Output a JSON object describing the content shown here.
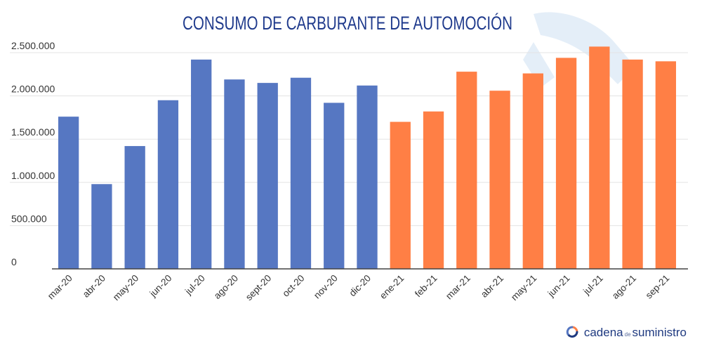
{
  "chart_data": {
    "type": "bar",
    "title": "CONSUMO DE CARBURANTE DE AUTOMOCIÓN",
    "xlabel": "",
    "ylabel": "",
    "ylim": [
      0,
      2500000
    ],
    "yticks": [
      0,
      500000,
      1000000,
      1500000,
      2000000,
      2500000
    ],
    "ytick_labels": [
      "0",
      "500.000",
      "1.000.000",
      "1.500.000",
      "2.000.000",
      "2.500.000"
    ],
    "grid": true,
    "categories": [
      "mar-20",
      "abr-20",
      "may-20",
      "jun-20",
      "jul-20",
      "ago-20",
      "sept-20",
      "oct-20",
      "nov-20",
      "dic-20",
      "ene-21",
      "feb-21",
      "mar-21",
      "abr-21",
      "may-21",
      "jun-21",
      "jul-21",
      "ago-21",
      "sep-21"
    ],
    "values": [
      1760000,
      980000,
      1420000,
      1950000,
      2420000,
      2190000,
      2150000,
      2210000,
      1920000,
      2120000,
      1700000,
      1820000,
      2280000,
      2060000,
      2260000,
      2440000,
      2570000,
      2420000,
      2400000
    ],
    "colors": {
      "2020": "#5677c2",
      "2021": "#ff7f45",
      "title": "#1f3a8c",
      "axis": "#333333",
      "grid": "#e3e3e3"
    },
    "bar_color_by_index": [
      "#5677c2",
      "#5677c2",
      "#5677c2",
      "#5677c2",
      "#5677c2",
      "#5677c2",
      "#5677c2",
      "#5677c2",
      "#5677c2",
      "#5677c2",
      "#ff7f45",
      "#ff7f45",
      "#ff7f45",
      "#ff7f45",
      "#ff7f45",
      "#ff7f45",
      "#ff7f45",
      "#ff7f45",
      "#ff7f45"
    ]
  },
  "brand": {
    "part1": "cadena",
    "part2": "de",
    "part3": "suministro",
    "icon": "cadena-suministro-logo-icon"
  },
  "watermark": {
    "icon": "fuel-nozzle-watermark-icon"
  }
}
